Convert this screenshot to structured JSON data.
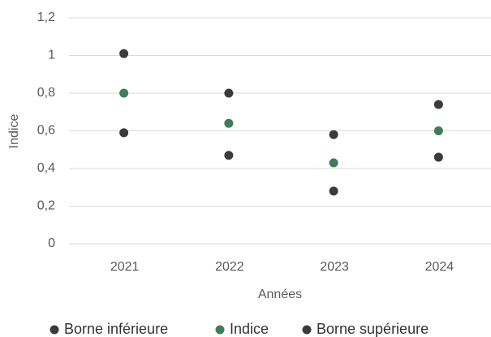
{
  "chart_data": {
    "type": "scatter",
    "x_label": "Années",
    "y_label": "Indice",
    "categories": [
      "2021",
      "2022",
      "2023",
      "2024"
    ],
    "series": [
      {
        "name": "Borne inférieure",
        "color": "#3b3b3b",
        "values": [
          0.59,
          0.47,
          0.28,
          0.46
        ]
      },
      {
        "name": "Indice",
        "color": "#3e7d58",
        "values": [
          0.8,
          0.64,
          0.43,
          0.6
        ]
      },
      {
        "name": "Borne supérieure",
        "color": "#3b3b3b",
        "values": [
          1.01,
          0.8,
          0.58,
          0.74
        ]
      }
    ],
    "ylim": [
      0,
      1.2
    ],
    "yticks": [
      0,
      {
        "value": 0.2,
        "label": "0,2"
      },
      {
        "value": 0.4,
        "label": "0,4"
      },
      {
        "value": 0.6,
        "label": "0,6"
      },
      {
        "value": 0.8,
        "label": "0,8"
      },
      1,
      {
        "value": 1.2,
        "label": "1,2"
      }
    ],
    "grid": true,
    "legend": "bottom"
  }
}
